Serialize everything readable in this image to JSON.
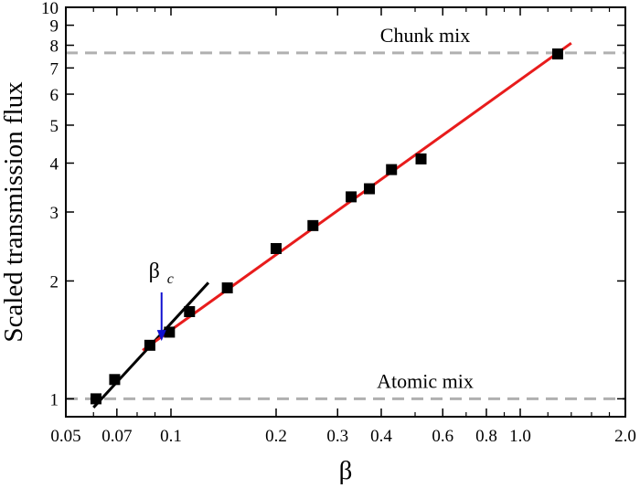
{
  "chart_data": {
    "type": "scatter",
    "title": "",
    "xlabel": "β",
    "ylabel": "Scaled transmission flux",
    "x_scale": "log",
    "y_scale": "log",
    "xlim": [
      0.05,
      2.0
    ],
    "ylim": [
      0.9,
      10
    ],
    "x_ticks": [
      {
        "value": 0.05,
        "label": "0.05"
      },
      {
        "value": 0.07,
        "label": "0.07"
      },
      {
        "value": 0.1,
        "label": "0.1"
      },
      {
        "value": 0.2,
        "label": "0.2"
      },
      {
        "value": 0.3,
        "label": "0.3"
      },
      {
        "value": 0.4,
        "label": "0.4"
      },
      {
        "value": 0.6,
        "label": "0.6"
      },
      {
        "value": 0.8,
        "label": "0.8"
      },
      {
        "value": 1.0,
        "label": "1.0"
      },
      {
        "value": 2.0,
        "label": "2.0"
      }
    ],
    "y_ticks": [
      {
        "value": 1,
        "label": "1"
      },
      {
        "value": 2,
        "label": "2"
      },
      {
        "value": 3,
        "label": "3"
      },
      {
        "value": 4,
        "label": "4"
      },
      {
        "value": 5,
        "label": "5"
      },
      {
        "value": 6,
        "label": "6"
      },
      {
        "value": 7,
        "label": "7"
      },
      {
        "value": 8,
        "label": "8"
      },
      {
        "value": 9,
        "label": "9"
      },
      {
        "value": 10,
        "label": "10"
      }
    ],
    "series": [
      {
        "marker": "square",
        "color": "#000000",
        "points": [
          {
            "x": 0.061,
            "y": 1.0
          },
          {
            "x": 0.069,
            "y": 1.12
          },
          {
            "x": 0.087,
            "y": 1.37
          },
          {
            "x": 0.099,
            "y": 1.48
          },
          {
            "x": 0.113,
            "y": 1.67
          },
          {
            "x": 0.145,
            "y": 1.92
          },
          {
            "x": 0.2,
            "y": 2.42
          },
          {
            "x": 0.255,
            "y": 2.77
          },
          {
            "x": 0.328,
            "y": 3.28
          },
          {
            "x": 0.37,
            "y": 3.44
          },
          {
            "x": 0.428,
            "y": 3.85
          },
          {
            "x": 0.52,
            "y": 4.1
          },
          {
            "x": 1.28,
            "y": 7.6
          }
        ]
      }
    ],
    "fit_lines": [
      {
        "color": "#000000",
        "x": [
          0.06,
          0.128
        ],
        "y": [
          0.95,
          1.98
        ]
      },
      {
        "color": "#e81c1c",
        "x": [
          0.083,
          1.4
        ],
        "y": [
          1.33,
          8.1
        ]
      }
    ],
    "reference_lines": [
      {
        "y": 1.0,
        "label": "Atomic mix",
        "color": "#b0b0b0",
        "style": "dashed"
      },
      {
        "y": 7.65,
        "label": "Chunk mix",
        "color": "#b0b0b0",
        "style": "dashed"
      }
    ],
    "annotation": {
      "label": "β",
      "subscript": "c",
      "arrow_x": 0.094,
      "arrow_y_from": 1.87,
      "arrow_y_to": 1.42,
      "arrow_color": "#1010d0"
    }
  }
}
